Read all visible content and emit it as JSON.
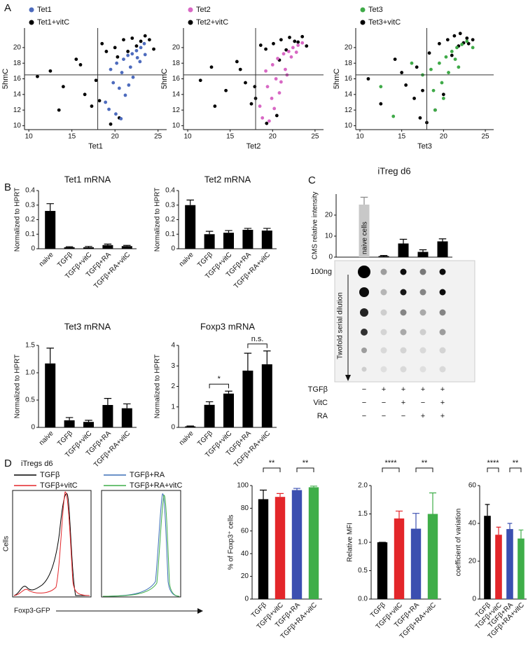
{
  "panel_labels": [
    "A",
    "B",
    "C",
    "D"
  ],
  "chart_data": [
    {
      "type": "scatter",
      "xlabel": "Tet1",
      "ylabel": "5hmC",
      "xlim": [
        9.5,
        26
      ],
      "ylim": [
        9.5,
        22.5
      ],
      "xticks": [
        10,
        15,
        20,
        25
      ],
      "yticks": [
        10,
        12,
        14,
        16,
        18,
        20
      ],
      "xline": 18,
      "yline": 16.5,
      "series": [
        {
          "name": "Tet1",
          "color": "#4d6bbd",
          "x": [
            19.5,
            20.2,
            21,
            21.5,
            22,
            22.5,
            23,
            23.4,
            20.8,
            21.8,
            22.6,
            19.8,
            20.5,
            21.2,
            22.1,
            23.5,
            18.9,
            19.3,
            20.1,
            21.6,
            22.9,
            20.7
          ],
          "y": [
            17.2,
            18,
            18.5,
            19,
            19.2,
            19.6,
            20,
            20.5,
            16.8,
            17.5,
            18.7,
            15.5,
            14.8,
            13.9,
            16.2,
            19.1,
            13,
            12.1,
            11.5,
            15.2,
            18.2,
            10.9
          ]
        },
        {
          "name": "Tet1+vitC",
          "color": "#000000",
          "x": [
            11,
            12.5,
            14,
            15.5,
            16.5,
            17.3,
            18.5,
            19,
            20,
            21,
            22,
            23,
            24,
            24.5,
            21.5,
            22.5,
            23.5,
            20.5,
            19.5,
            17.8,
            16,
            13.5,
            20.3,
            18.2
          ],
          "y": [
            16.3,
            17,
            15,
            18.5,
            14,
            12.5,
            20.5,
            19.5,
            20,
            21,
            21.2,
            20.8,
            21,
            19.8,
            19.5,
            20.2,
            21.5,
            11,
            10.2,
            15.8,
            17.8,
            12,
            18.8,
            13.2
          ]
        }
      ]
    },
    {
      "type": "scatter",
      "xlabel": "Tet2",
      "ylabel": "5hmC",
      "xlim": [
        9.5,
        26
      ],
      "ylim": [
        9.5,
        22.5
      ],
      "xticks": [
        10,
        15,
        20,
        25
      ],
      "yticks": [
        10,
        12,
        14,
        16,
        18,
        20
      ],
      "xline": 18,
      "yline": 16.5,
      "series": [
        {
          "name": "Tet2",
          "color": "#d868c4",
          "x": [
            19.2,
            20,
            20.6,
            21.3,
            21.9,
            22.4,
            23,
            23.5,
            20.4,
            21.5,
            22.2,
            19.4,
            19.9,
            20.8,
            21.7,
            18.5,
            18.8,
            19.6,
            22.8,
            20.2,
            21
          ],
          "y": [
            17,
            17.8,
            18.6,
            19.2,
            19.5,
            20,
            20.3,
            20.6,
            16,
            17.2,
            18.8,
            15,
            13.5,
            14.2,
            16.5,
            12.5,
            11,
            10.6,
            19.4,
            12.2,
            15.6
          ]
        },
        {
          "name": "Tet2+vitC",
          "color": "#000000",
          "x": [
            11.5,
            12.8,
            14.5,
            15.8,
            16.8,
            17.5,
            18.6,
            19.2,
            20.1,
            21,
            22,
            23,
            24,
            21.6,
            22.6,
            23.5,
            20.5,
            19.3,
            17.9,
            16.2,
            13.2,
            20.8,
            18
          ],
          "y": [
            15.8,
            17.5,
            14.5,
            18.2,
            15.5,
            12.8,
            20.3,
            19.8,
            20.5,
            21,
            21.3,
            20.7,
            20.2,
            19.7,
            20.8,
            21.4,
            11.3,
            10.3,
            15,
            17.2,
            12.5,
            18.4,
            13.5
          ]
        }
      ]
    },
    {
      "type": "scatter",
      "xlabel": "Tet3",
      "ylabel": "5hmC",
      "xlim": [
        9.5,
        26
      ],
      "ylim": [
        9.5,
        22.5
      ],
      "xticks": [
        10,
        15,
        20,
        25
      ],
      "yticks": [
        10,
        12,
        14,
        16,
        18,
        20
      ],
      "xline": 18,
      "yline": 16.5,
      "series": [
        {
          "name": "Tet3",
          "color": "#3faa48",
          "x": [
            17.5,
            18.5,
            19.5,
            20.3,
            21,
            21.6,
            22.2,
            22.8,
            19.8,
            20.6,
            21.4,
            18.8,
            20,
            16.2,
            14,
            23.5,
            19,
            21.8,
            12.5
          ],
          "y": [
            16.5,
            17.2,
            18,
            18.8,
            19.5,
            20,
            20.4,
            20.8,
            15.5,
            16.8,
            18.5,
            14.5,
            13.5,
            18,
            11.2,
            20,
            12,
            17.5,
            15
          ]
        },
        {
          "name": "Tet3+vitC",
          "color": "#000000",
          "x": [
            11,
            12.5,
            14.2,
            15.5,
            16.5,
            17.2,
            18.3,
            19.5,
            20.5,
            21.3,
            22,
            22.8,
            23.5,
            21.8,
            22.4,
            20,
            19,
            18,
            16.8,
            15,
            21,
            17.5,
            23
          ],
          "y": [
            16,
            12.8,
            18.5,
            15.2,
            13.5,
            11,
            19.3,
            20.5,
            21,
            21.5,
            21.8,
            21.2,
            21,
            20.2,
            20.6,
            14,
            12,
            10.4,
            17.5,
            16.8,
            19,
            14.5,
            20.5
          ]
        }
      ]
    },
    {
      "type": "bar",
      "title": "Tet1 mRNA",
      "ylabel": "Normalized to HPRT",
      "categories": [
        "naive",
        "TGFβ",
        "TGFβ+vitC",
        "TGFβ+RA",
        "TGFβ+RA+vitC"
      ],
      "values": [
        0.26,
        0.01,
        0.01,
        0.025,
        0.018
      ],
      "errors": [
        0.05,
        0.004,
        0.006,
        0.007,
        0.005
      ],
      "color": "#000000",
      "ylim": [
        0,
        0.4
      ],
      "yticks": [
        0,
        0.1,
        0.2,
        0.3,
        0.4
      ]
    },
    {
      "type": "bar",
      "title": "Tet2 mRNA",
      "ylabel": "Normalized to HPRT",
      "categories": [
        "naive",
        "TGFβ",
        "TGFβ+vitC",
        "TGFβ+RA",
        "TGFβ+RA+vitC"
      ],
      "values": [
        0.3,
        0.1,
        0.11,
        0.13,
        0.125
      ],
      "errors": [
        0.035,
        0.02,
        0.015,
        0.01,
        0.015
      ],
      "color": "#000000",
      "ylim": [
        0,
        0.4
      ],
      "yticks": [
        0,
        0.1,
        0.2,
        0.3,
        0.4
      ]
    },
    {
      "type": "bar",
      "title": "Tet3 mRNA",
      "ylabel": "Normalized to HPRT",
      "categories": [
        "naive",
        "TGFβ",
        "TGFβ+vitC",
        "TGFβ+RA",
        "TGFβ+RA+vitC"
      ],
      "values": [
        1.17,
        0.13,
        0.1,
        0.41,
        0.35
      ],
      "errors": [
        0.28,
        0.05,
        0.03,
        0.12,
        0.08
      ],
      "color": "#000000",
      "ylim": [
        0,
        1.5
      ],
      "yticks": [
        0,
        0.5,
        {
          "value": 1,
          "label": "1.0"
        },
        1.5
      ]
    },
    {
      "type": "bar",
      "title": "Foxp3 mRNA",
      "ylabel": "Normalized to HPRT",
      "categories": [
        "naive",
        "TGFβ",
        "TGFβ+vitC",
        "TGFβ+RA",
        "TGFβ+RA+vitC"
      ],
      "values": [
        0.05,
        1.1,
        1.65,
        2.77,
        3.08
      ],
      "errors": [
        0.02,
        0.15,
        0.12,
        0.85,
        0.65
      ],
      "color": "#000000",
      "ylim": [
        0,
        4
      ],
      "yticks": [
        0,
        1,
        2,
        3,
        4
      ],
      "annotations": [
        {
          "text": "*",
          "from": "TGFβ",
          "to": "TGFβ+vitC"
        },
        {
          "text": "n.s.",
          "from": "TGFβ+RA",
          "to": "TGFβ+RA+vitC"
        }
      ]
    },
    {
      "type": "bar",
      "title": "iTreg d6",
      "ylabel": "CMS relative intensity",
      "categories": [
        "naive cells",
        null,
        null,
        null,
        null
      ],
      "values": [
        25,
        0.5,
        6.5,
        2.5,
        7.5
      ],
      "errors": [
        3.5,
        0.3,
        2,
        1,
        1.2
      ],
      "colors": [
        "#c8c8c8",
        "#000000",
        "#000000",
        "#000000",
        "#000000"
      ],
      "ylim": [
        0,
        30
      ],
      "yticks": [
        0,
        10,
        20
      ],
      "blot_label": "100ng",
      "blot_axis_label": "Twofold serial dilution",
      "treatments": [
        {
          "label": "TGFβ",
          "marks": [
            "−",
            "+",
            "+",
            "+",
            "+"
          ]
        },
        {
          "label": "VitC",
          "marks": [
            "−",
            "−",
            "+",
            "−",
            "+"
          ]
        },
        {
          "label": "RA",
          "marks": [
            "−",
            "−",
            "−",
            "+",
            "+"
          ]
        }
      ]
    },
    {
      "type": "density",
      "title": "iTregs d6",
      "ylabel": "Cells",
      "xlabel": "Foxp3-GFP",
      "series": [
        {
          "name": "TGFβ",
          "color": "#000000"
        },
        {
          "name": "TGFβ+vitC",
          "color": "#e3262a"
        }
      ]
    },
    {
      "type": "density",
      "series": [
        {
          "name": "TGFβ+RA",
          "color": "#3b6fb6"
        },
        {
          "name": "TGFβ+RA+vitC",
          "color": "#3fae49"
        }
      ]
    },
    {
      "type": "bar",
      "ylabel": "% of Foxp3⁺ cells",
      "categories": [
        "TGFβ",
        "TGFβ+vitC",
        "TGFβ+RA",
        "TGFβ+RA+vitC"
      ],
      "values": [
        88,
        90,
        96,
        98.5
      ],
      "errors": [
        8,
        3,
        1.5,
        1
      ],
      "colors": [
        "#000000",
        "#e3262a",
        "#3b4fb0",
        "#3fae49"
      ],
      "ylim": [
        0,
        100
      ],
      "yticks": [
        0,
        20,
        40,
        60,
        80,
        100
      ],
      "annotations": [
        {
          "text": "**",
          "from": "TGFβ",
          "to": "TGFβ+vitC"
        },
        {
          "text": "**",
          "from": "TGFβ+RA",
          "to": "TGFβ+RA+vitC"
        }
      ]
    },
    {
      "type": "bar",
      "ylabel": "Relative MFI",
      "categories": [
        "TGFβ",
        "TGFβ+vitC",
        "TGFβ+RA",
        "TGFβ+RA+vitC"
      ],
      "values": [
        1,
        1.42,
        1.24,
        1.5
      ],
      "errors": [
        0,
        0.13,
        0.27,
        0.37
      ],
      "colors": [
        "#000000",
        "#e3262a",
        "#3b4fb0",
        "#3fae49"
      ],
      "ylim": [
        0,
        2
      ],
      "yticks": [
        {
          "value": 0,
          "label": "0.0"
        },
        0.5,
        {
          "value": 1,
          "label": "1.0"
        },
        1.5,
        {
          "value": 2,
          "label": "2.0"
        }
      ],
      "annotations": [
        {
          "text": "****",
          "from": "TGFβ",
          "to": "TGFβ+vitC"
        },
        {
          "text": "**",
          "from": "TGFβ+RA",
          "to": "TGFβ+RA+vitC"
        }
      ]
    },
    {
      "type": "bar",
      "ylabel": "coefficient of variation",
      "categories": [
        "TGFβ",
        "TGFβ+vitC",
        "TGFβ+RA",
        "TGFβ+RA+vitC"
      ],
      "values": [
        44,
        34,
        37,
        32
      ],
      "errors": [
        6,
        4,
        3,
        4.5
      ],
      "colors": [
        "#000000",
        "#e3262a",
        "#3b4fb0",
        "#3fae49"
      ],
      "ylim": [
        0,
        60
      ],
      "yticks": [
        0,
        20,
        40,
        60
      ],
      "annotations": [
        {
          "text": "****",
          "from": "TGFβ",
          "to": "TGFβ+vitC"
        },
        {
          "text": "**",
          "from": "TGFβ+RA",
          "to": "TGFβ+RA+vitC"
        }
      ]
    }
  ]
}
